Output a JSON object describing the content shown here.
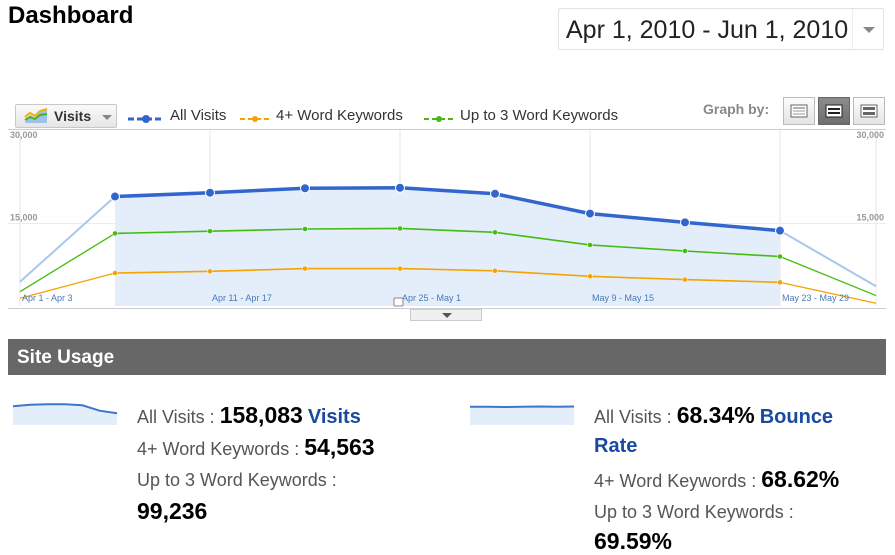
{
  "header": {
    "title": "Dashboard",
    "date_range": "Apr 1, 2010 - Jun 1, 2010"
  },
  "graph_toolbar": {
    "metric_button": "Visits",
    "legend": [
      {
        "label": "All Visits",
        "color": "#3366cc"
      },
      {
        "label": "4+ Word Keywords",
        "color": "#f5a300"
      },
      {
        "label": "Up to 3 Word Keywords",
        "color": "#44bb11"
      }
    ],
    "graph_by_label": "Graph by:",
    "graph_by_options": [
      "day-icon",
      "week-icon",
      "month-icon"
    ],
    "graph_by_selected": "week-icon"
  },
  "chart_data": {
    "type": "line",
    "y_axis_left_ticks": [
      "30,000",
      "15,000"
    ],
    "y_axis_right_ticks": [
      "30,000",
      "15,000"
    ],
    "ylim": [
      0,
      30000
    ],
    "x_tick_labels": [
      "Apr 1 - Apr 3",
      "Apr 11 - Apr 17",
      "Apr 25 - May 1",
      "May 9 - May 15",
      "May 23 - May 29"
    ],
    "x": [
      "Mar 28",
      "Apr 4",
      "Apr 11",
      "Apr 18",
      "Apr 25",
      "May 2",
      "May 9",
      "May 16",
      "May 23",
      "May 30"
    ],
    "selected_range": [
      "Apr 4",
      "May 23"
    ],
    "series": [
      {
        "name": "All Visits",
        "color": "#3366cc",
        "values": [
          4400,
          19900,
          20600,
          21400,
          21500,
          20400,
          16800,
          15200,
          13700,
          3600
        ]
      },
      {
        "name": "4+ Word Keywords",
        "color": "#f5a300",
        "values": [
          1400,
          6000,
          6300,
          6800,
          6800,
          6400,
          5400,
          4800,
          4300,
          500
        ]
      },
      {
        "name": "Up to 3 Word Keywords",
        "color": "#44bb11",
        "values": [
          2600,
          13200,
          13600,
          14000,
          14100,
          13400,
          11100,
          10000,
          9000,
          1900
        ]
      }
    ]
  },
  "site_usage": {
    "header": "Site Usage",
    "visits": {
      "all_label": "All Visits : ",
      "all_value": "158,083",
      "metric_link": "Visits",
      "four_plus_label": "4+ Word Keywords : ",
      "four_plus_value": "54,563",
      "up_to_3_label": "Up to 3 Word Keywords :",
      "up_to_3_value": "99,236",
      "sparkline": [
        0.72,
        0.78,
        0.8,
        0.8,
        0.76,
        0.55,
        0.45
      ]
    },
    "bounce": {
      "all_label": "All Visits : ",
      "all_value": "68.34%",
      "metric_link_1": "Bounce",
      "metric_link_2": "Rate",
      "four_plus_label": "4+ Word Keywords : ",
      "four_plus_value": "68.62%",
      "up_to_3_label": "Up to 3 Word Keywords :",
      "up_to_3_value": "69.59%",
      "sparkline": [
        0.7,
        0.7,
        0.69,
        0.7,
        0.71,
        0.7,
        0.71
      ]
    }
  }
}
